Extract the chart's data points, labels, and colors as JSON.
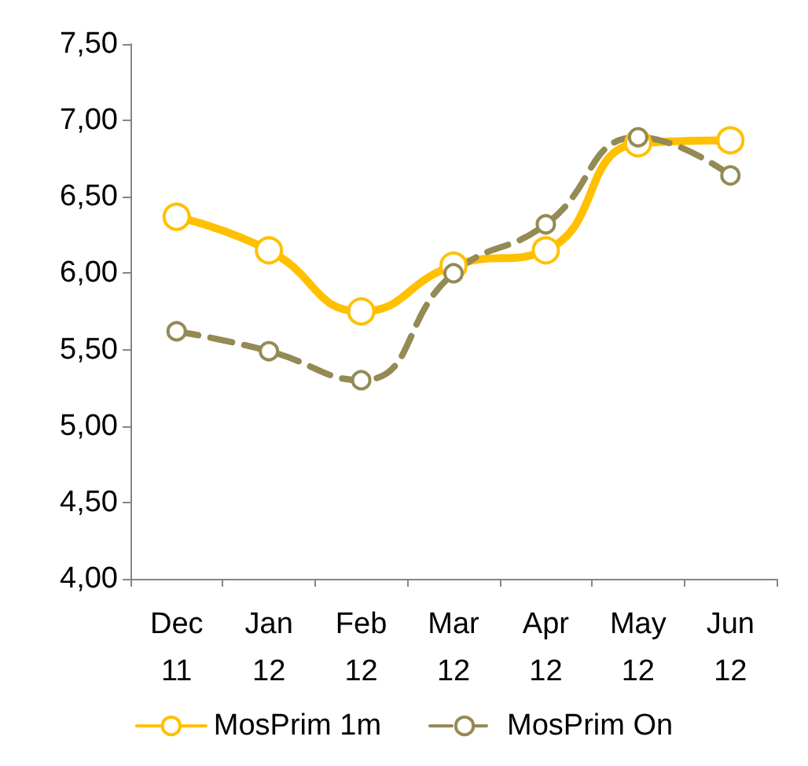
{
  "chart_data": {
    "type": "line",
    "categories": [
      "Dec\n11",
      "Jan\n12",
      "Feb\n12",
      "Mar\n12",
      "Apr\n12",
      "May\n12",
      "Jun\n12"
    ],
    "series": [
      {
        "name": "MosPrim 1m",
        "color": "#ffc000",
        "line_style": "solid",
        "values": [
          6.37,
          6.15,
          5.75,
          6.05,
          6.15,
          6.85,
          6.87
        ]
      },
      {
        "name": "MosPrim On",
        "color": "#948a54",
        "line_style": "dashed",
        "values": [
          5.62,
          5.49,
          5.3,
          6.0,
          6.32,
          6.89,
          6.64
        ]
      }
    ],
    "ylim": [
      4,
      7.5
    ],
    "yticks": [
      {
        "value": 4,
        "label": "4,00"
      },
      {
        "value": 4.5,
        "label": "4,50"
      },
      {
        "value": 5,
        "label": "5,00"
      },
      {
        "value": 5.5,
        "label": "5,50"
      },
      {
        "value": 6,
        "label": "6,00"
      },
      {
        "value": 6.5,
        "label": "6,50"
      },
      {
        "value": 7,
        "label": "7,00"
      },
      {
        "value": 7.5,
        "label": "7,50"
      }
    ],
    "grid": false,
    "legend": "bottom",
    "marker": "circle"
  }
}
